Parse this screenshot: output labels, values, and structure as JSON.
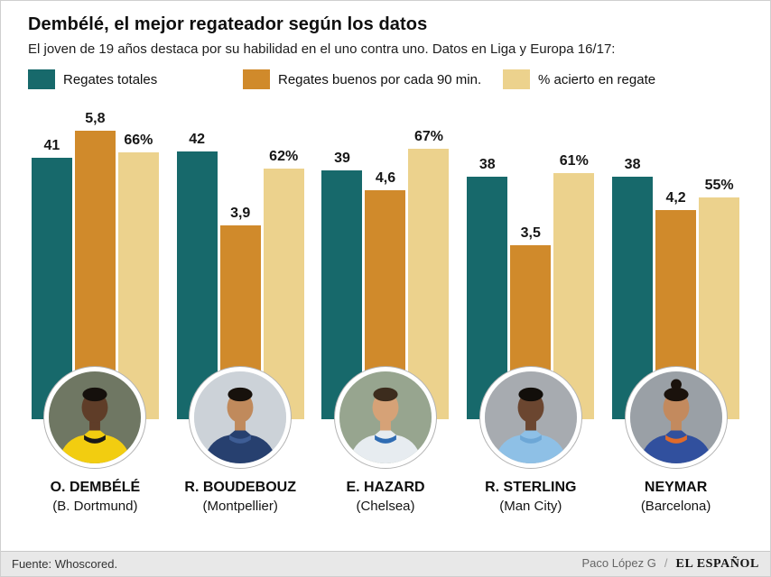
{
  "header": {
    "title": "Dembélé, el mejor regateador según los datos",
    "subtitle": "El joven de 19 años destaca por su habilidad en el uno contra uno. Datos en Liga y Europa 16/17:"
  },
  "legend": [
    {
      "label": "Regates totales",
      "color": "#17696b"
    },
    {
      "label": "Regates buenos por cada 90 min.",
      "color": "#d08a2b"
    },
    {
      "label": "% acierto en regate",
      "color": "#ecd28d"
    }
  ],
  "chart_data": {
    "type": "bar",
    "title": "Dembélé, el mejor regateador según los datos",
    "categories": [
      "O. DEMBÉLÉ",
      "R. BOUDEBOUZ",
      "E. HAZARD",
      "R. STERLING",
      "NEYMAR"
    ],
    "teams": [
      "(B. Dortmund)",
      "(Montpellier)",
      "(Chelsea)",
      "(Man City)",
      "(Barcelona)"
    ],
    "legend_position": "top",
    "grid": false,
    "series": [
      {
        "name": "Regates totales",
        "color": "#17696b",
        "values": [
          41,
          42,
          39,
          38,
          38
        ],
        "labels": [
          "41",
          "42",
          "39",
          "38",
          "38"
        ]
      },
      {
        "name": "Regates buenos por cada 90 min.",
        "color": "#d08a2b",
        "values": [
          5.8,
          3.9,
          4.6,
          3.5,
          4.2
        ],
        "labels": [
          "5,8",
          "3,9",
          "4,6",
          "3,5",
          "4,2"
        ]
      },
      {
        "name": "% acierto en regate",
        "color": "#ecd28d",
        "values": [
          66,
          62,
          67,
          61,
          55
        ],
        "labels": [
          "66%",
          "62%",
          "67%",
          "61%",
          "55%"
        ]
      }
    ]
  },
  "players": [
    {
      "name": "O. DEMBÉLÉ",
      "team": "(B. Dortmund)",
      "bg": "#6f7763",
      "jersey": "#f2cd10",
      "accent": "#181818",
      "skin": "#5f3d28",
      "hair": "#15100c",
      "topknot": false
    },
    {
      "name": "R. BOUDEBOUZ",
      "team": "(Montpellier)",
      "bg": "#ccd2d8",
      "jersey": "#27406f",
      "accent": "#3e5d95",
      "skin": "#c08a5c",
      "hair": "#17110c",
      "topknot": false
    },
    {
      "name": "E. HAZARD",
      "team": "(Chelsea)",
      "bg": "#97a58f",
      "jersey": "#e7ecf0",
      "accent": "#2f6cb3",
      "skin": "#d6a277",
      "hair": "#3c2c1d",
      "topknot": false
    },
    {
      "name": "R. STERLING",
      "team": "(Man City)",
      "bg": "#a7abb0",
      "jersey": "#8ec0e6",
      "accent": "#6da7d6",
      "skin": "#6b4630",
      "hair": "#120e0a",
      "topknot": false
    },
    {
      "name": "NEYMAR",
      "team": "(Barcelona)",
      "bg": "#9aa0a6",
      "jersey": "#31509e",
      "accent": "#e06b2a",
      "skin": "#c38a5e",
      "hair": "#1a120c",
      "topknot": true
    }
  ],
  "footer": {
    "source": "Fuente: Whoscored.",
    "credit": "Paco López G",
    "separator": "/",
    "brand": "EL ESPAÑOL"
  }
}
